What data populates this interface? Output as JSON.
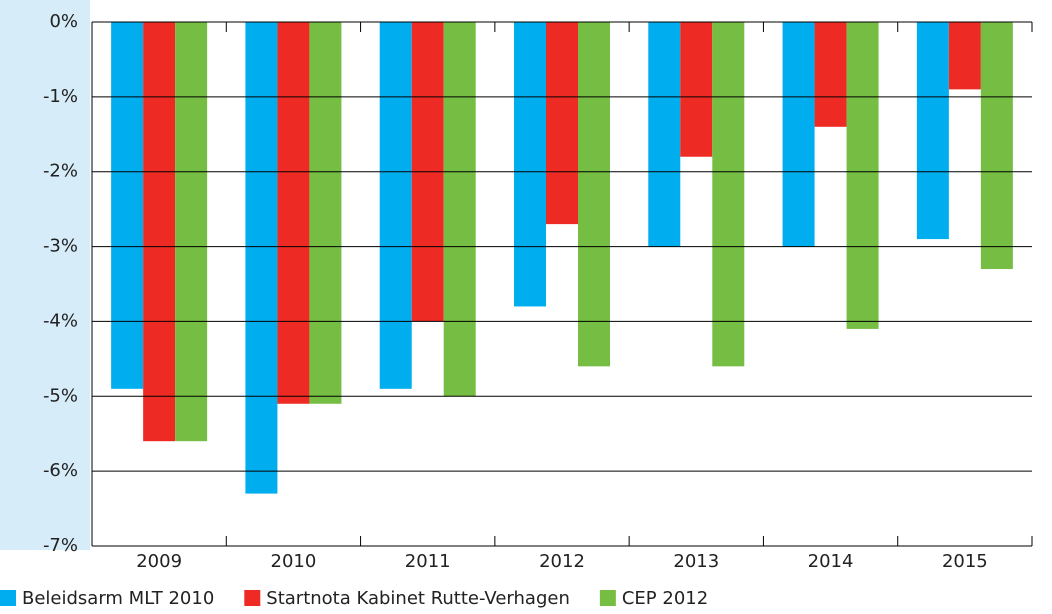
{
  "chart_data": {
    "type": "bar",
    "categories": [
      "2009",
      "2010",
      "2011",
      "2012",
      "2013",
      "2014",
      "2015"
    ],
    "series": [
      {
        "name": "Beleidsarm MLT 2010",
        "color": "#00adee",
        "values": [
          -4.9,
          -6.3,
          -4.9,
          -3.8,
          -3.0,
          -3.0,
          -2.9
        ]
      },
      {
        "name": "Startnota Kabinet Rutte-Verhagen",
        "color": "#ee2a24",
        "values": [
          -5.6,
          -5.1,
          -4.0,
          -2.7,
          -1.8,
          -1.4,
          -0.9
        ]
      },
      {
        "name": "CEP 2012",
        "color": "#76bd43",
        "values": [
          -5.6,
          -5.1,
          -5.0,
          -4.6,
          -4.6,
          -4.1,
          -3.3
        ]
      }
    ],
    "ylim": [
      -7,
      0
    ],
    "yticks": [
      {
        "value": 0,
        "label": "0%"
      },
      {
        "value": -1,
        "label": "-1%"
      },
      {
        "value": -2,
        "label": "-2%"
      },
      {
        "value": -3,
        "label": "-3%"
      },
      {
        "value": -4,
        "label": "-4%"
      },
      {
        "value": -5,
        "label": "-5%"
      },
      {
        "value": -6,
        "label": "-6%"
      },
      {
        "value": -7,
        "label": "-7%"
      }
    ],
    "grid": true,
    "legend": "bottom"
  }
}
